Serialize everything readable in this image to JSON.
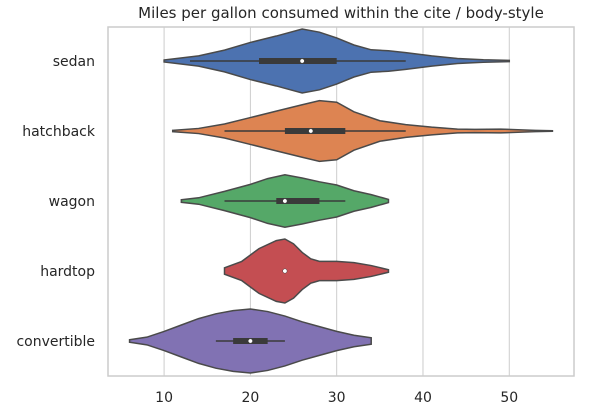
{
  "chart_data": {
    "type": "violin",
    "orientation": "horizontal",
    "title": "Miles per gallon consumed within the cite / body-style",
    "xlabel": "",
    "ylabel": "",
    "xlim": [
      3.5,
      57.5
    ],
    "xticks": [
      10,
      20,
      30,
      40,
      50
    ],
    "grid": "vertical",
    "categories": [
      "sedan",
      "hatchback",
      "wagon",
      "hardtop",
      "convertible"
    ],
    "series": [
      {
        "name": "sedan",
        "color": "#4c72b0",
        "min": 10,
        "max": 50,
        "q1": 21,
        "median": 26,
        "q3": 30,
        "whisker_low": 13,
        "whisker_high": 38,
        "density": [
          [
            10,
            0.03
          ],
          [
            14,
            0.16
          ],
          [
            17,
            0.34
          ],
          [
            20,
            0.58
          ],
          [
            23,
            0.78
          ],
          [
            26,
            1.0
          ],
          [
            28,
            0.9
          ],
          [
            30,
            0.72
          ],
          [
            32,
            0.5
          ],
          [
            34,
            0.35
          ],
          [
            36,
            0.32
          ],
          [
            38,
            0.26
          ],
          [
            41,
            0.16
          ],
          [
            44,
            0.08
          ],
          [
            47,
            0.04
          ],
          [
            50,
            0.02
          ]
        ]
      },
      {
        "name": "hatchback",
        "color": "#dd8452",
        "min": 11,
        "max": 55,
        "q1": 24,
        "median": 27,
        "q3": 31,
        "whisker_low": 17,
        "whisker_high": 38,
        "density": [
          [
            11,
            0.02
          ],
          [
            14,
            0.08
          ],
          [
            17,
            0.22
          ],
          [
            20,
            0.42
          ],
          [
            23,
            0.62
          ],
          [
            26,
            0.82
          ],
          [
            28,
            0.95
          ],
          [
            30,
            0.9
          ],
          [
            32,
            0.6
          ],
          [
            35,
            0.32
          ],
          [
            38,
            0.2
          ],
          [
            41,
            0.12
          ],
          [
            44,
            0.06
          ],
          [
            46,
            0.05
          ],
          [
            49,
            0.06
          ],
          [
            51,
            0.04
          ],
          [
            53,
            0.02
          ],
          [
            55,
            0.01
          ]
        ]
      },
      {
        "name": "wagon",
        "color": "#55a868",
        "min": 12,
        "max": 36,
        "q1": 23,
        "median": 24,
        "q3": 28,
        "whisker_low": 17,
        "whisker_high": 31,
        "density": [
          [
            12,
            0.04
          ],
          [
            14,
            0.1
          ],
          [
            17,
            0.3
          ],
          [
            20,
            0.52
          ],
          [
            22,
            0.7
          ],
          [
            24,
            0.82
          ],
          [
            26,
            0.72
          ],
          [
            28,
            0.6
          ],
          [
            30,
            0.5
          ],
          [
            32,
            0.32
          ],
          [
            34,
            0.2
          ],
          [
            36,
            0.05
          ]
        ]
      },
      {
        "name": "hardtop",
        "color": "#c44e52",
        "min": 17,
        "max": 36,
        "q1": 24,
        "median": 24,
        "q3": 24,
        "whisker_low": 24,
        "whisker_high": 24,
        "density": [
          [
            17,
            0.1
          ],
          [
            19,
            0.3
          ],
          [
            21,
            0.7
          ],
          [
            23,
            0.95
          ],
          [
            24,
            1.0
          ],
          [
            25,
            0.85
          ],
          [
            26,
            0.58
          ],
          [
            27,
            0.38
          ],
          [
            28,
            0.3
          ],
          [
            30,
            0.3
          ],
          [
            32,
            0.26
          ],
          [
            34,
            0.17
          ],
          [
            36,
            0.04
          ]
        ]
      },
      {
        "name": "convertible",
        "color": "#8172b3",
        "min": 6,
        "max": 34,
        "q1": 18,
        "median": 20,
        "q3": 22,
        "whisker_low": 16,
        "whisker_high": 24,
        "density": [
          [
            6,
            0.04
          ],
          [
            8,
            0.12
          ],
          [
            10,
            0.3
          ],
          [
            12,
            0.5
          ],
          [
            14,
            0.7
          ],
          [
            16,
            0.85
          ],
          [
            18,
            0.95
          ],
          [
            20,
            1.0
          ],
          [
            22,
            0.92
          ],
          [
            24,
            0.78
          ],
          [
            26,
            0.6
          ],
          [
            28,
            0.45
          ],
          [
            30,
            0.3
          ],
          [
            32,
            0.18
          ],
          [
            34,
            0.1
          ]
        ]
      }
    ]
  }
}
